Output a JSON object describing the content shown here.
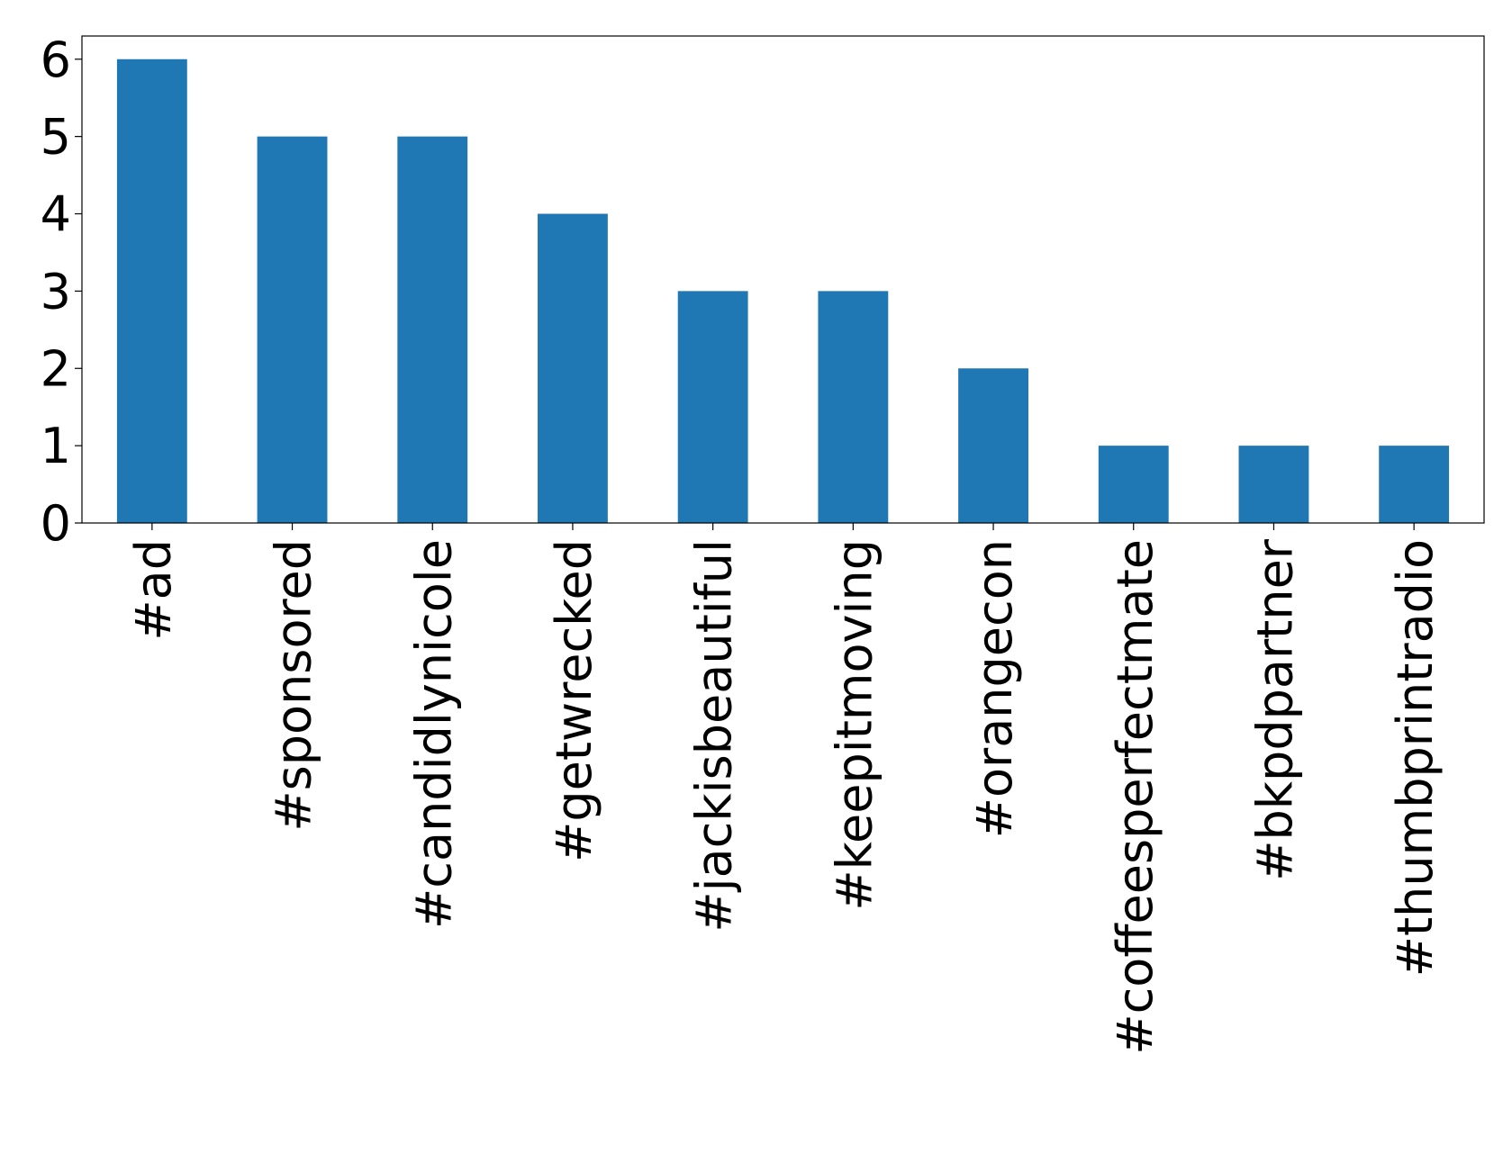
{
  "chart_data": {
    "type": "bar",
    "categories": [
      "#ad",
      "#sponsored",
      "#candidlynicole",
      "#getwrecked",
      "#jackisbeautiful",
      "#keepitmoving",
      "#orangecon",
      "#coffeesperfectmate",
      "#bkpdpartner",
      "#thumbprintradio"
    ],
    "values": [
      6,
      5,
      5,
      4,
      3,
      3,
      2,
      1,
      1,
      1
    ],
    "color": "#1f77b4",
    "ylim": [
      0,
      6.3
    ],
    "yticks": [
      0,
      1,
      2,
      3,
      4,
      5,
      6
    ],
    "grid": false
  }
}
